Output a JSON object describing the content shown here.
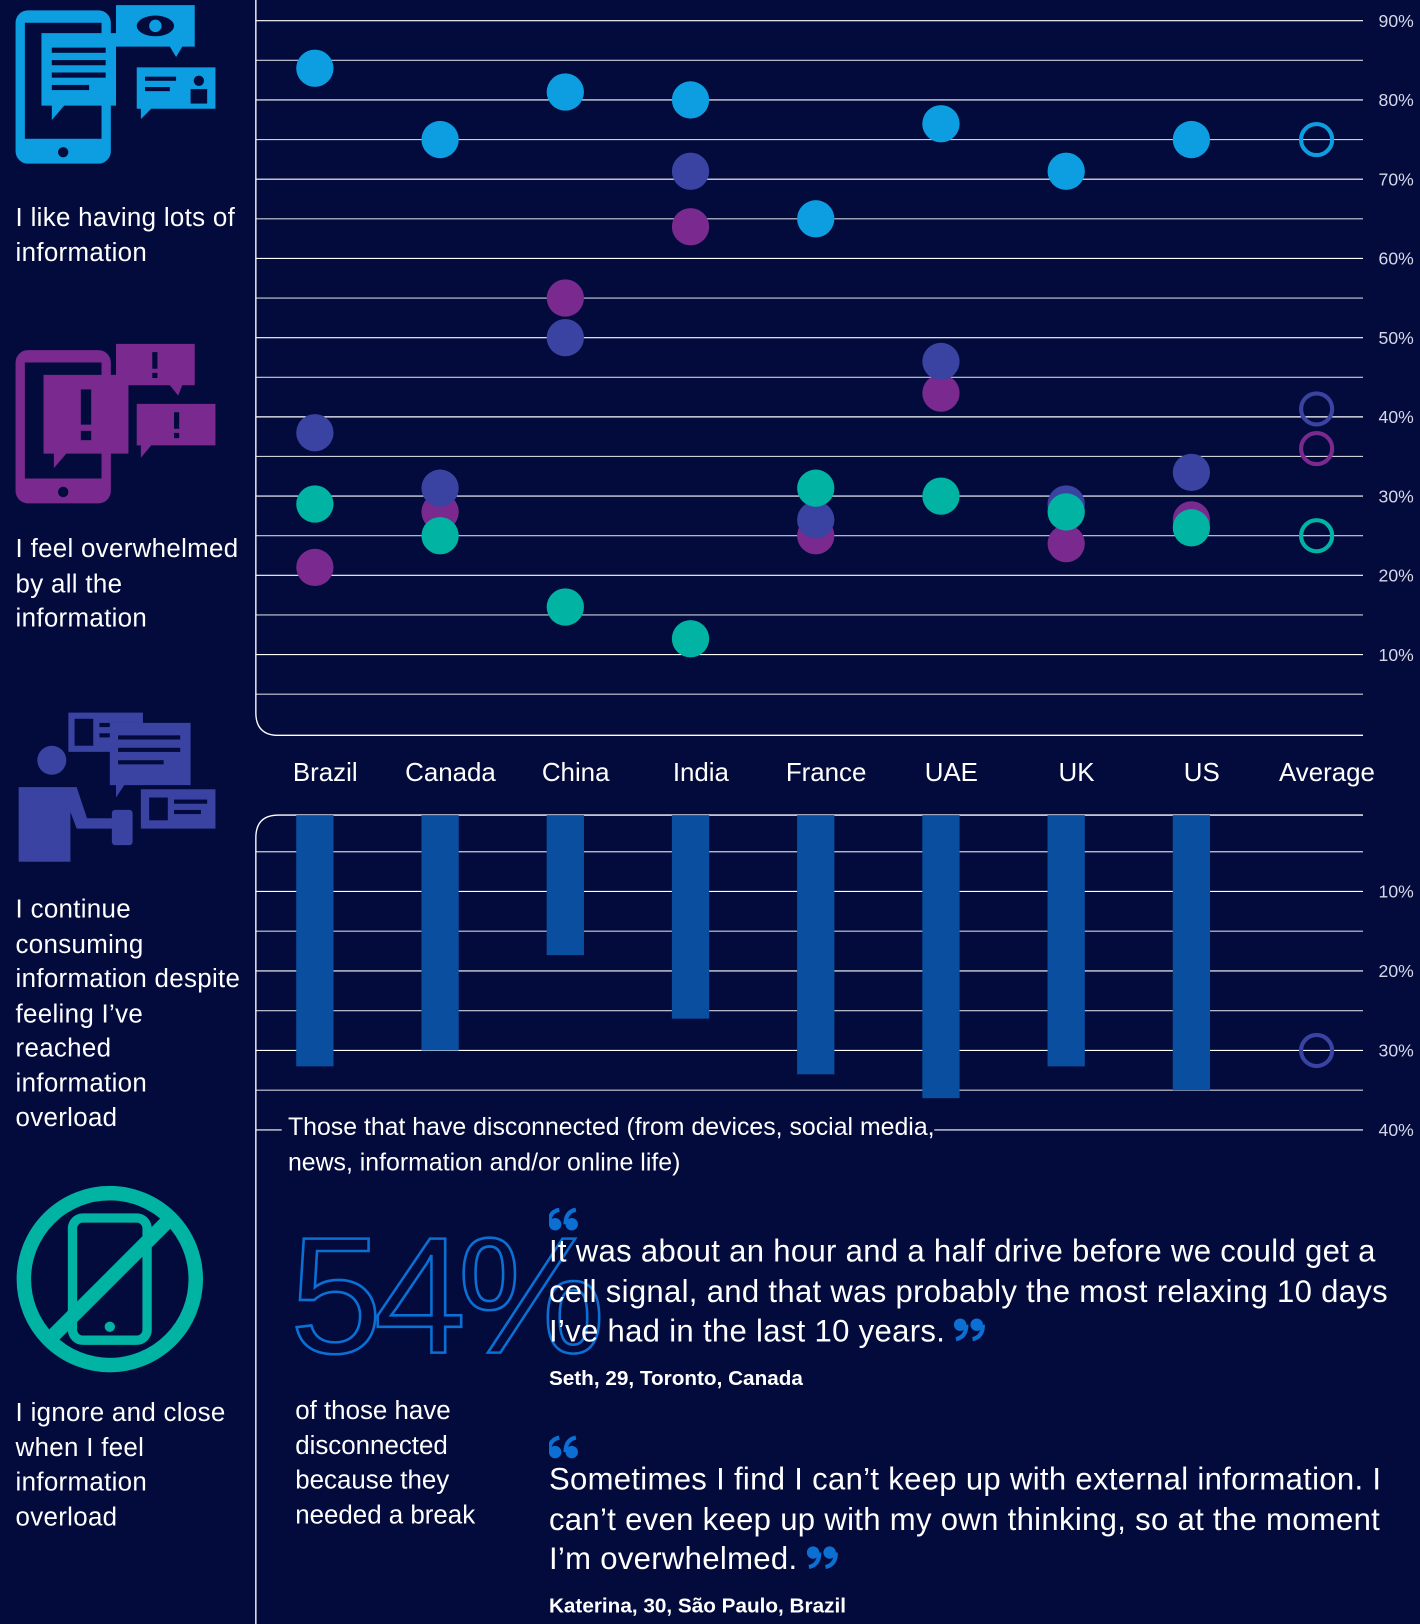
{
  "chart_data": [
    {
      "type": "dot",
      "categories": [
        "Brazil",
        "Canada",
        "China",
        "India",
        "France",
        "UAE",
        "UK",
        "US",
        "Average"
      ],
      "series": [
        {
          "name": "I like having lots of information",
          "color": "#0d9ee2",
          "values": [
            84,
            75,
            81,
            80,
            65,
            77,
            71,
            75,
            75
          ]
        },
        {
          "name": "I feel overwhelmed by all the information",
          "color": "#7a2a8e",
          "values": [
            21,
            28,
            55,
            64,
            25,
            43,
            24,
            27,
            36
          ]
        },
        {
          "name": "I continue consuming information despite feeling I’ve reached information overload",
          "color": "#3a43a2",
          "values": [
            38,
            31,
            50,
            71,
            27,
            47,
            29,
            33,
            41
          ]
        },
        {
          "name": "I ignore and close when I feel information overload",
          "color": "#00b3a3",
          "values": [
            29,
            25,
            16,
            12,
            31,
            30,
            28,
            26,
            25
          ]
        }
      ],
      "ylim": [
        0,
        90
      ],
      "yticks": [
        {
          "value": 10,
          "label": "10%"
        },
        {
          "value": 20,
          "label": "20%"
        },
        {
          "value": 30,
          "label": "30%"
        },
        {
          "value": 40,
          "label": "40%"
        },
        {
          "value": 50,
          "label": "50%"
        },
        {
          "value": 60,
          "label": "60%"
        },
        {
          "value": 70,
          "label": "70%"
        },
        {
          "value": 80,
          "label": "80%"
        },
        {
          "value": 90,
          "label": "90%"
        }
      ],
      "minor_yticks": [
        5,
        15,
        25,
        35,
        45,
        55,
        65,
        75,
        85
      ],
      "grid": true
    },
    {
      "type": "bar",
      "xlabel": "Those that have disconnected (from devices, social media, news, information and/or online life)",
      "values": [
        32,
        30,
        18,
        26,
        33,
        36,
        32,
        35,
        30
      ],
      "color": "#0a4f9f",
      "average_color": "#3a43a2",
      "ylim": [
        0,
        40
      ],
      "inverted": true,
      "yticks": [
        {
          "value": 10,
          "label": "10%"
        },
        {
          "value": 20,
          "label": "20%"
        },
        {
          "value": 30,
          "label": "30%"
        },
        {
          "value": 40,
          "label": "40%"
        }
      ],
      "minor_yticks": [
        5,
        15,
        25,
        35
      ],
      "grid": true
    }
  ],
  "stat": {
    "value": "54%",
    "caption": "of those have disconnected because they needed a break"
  },
  "quotes": [
    {
      "text": "It was about an hour and a half drive before we could get a cell signal, and that was probably the most relaxing 10 days I’ve had in the last 10 years.",
      "author": "Seth, 29, Toronto, Canada"
    },
    {
      "text": "Sometimes I find I can’t keep up with external information. I can’t even keep up with my own thinking, so at the moment I’m overwhelmed.",
      "author": "Katerina, 30, São Paulo, Brazil"
    }
  ]
}
